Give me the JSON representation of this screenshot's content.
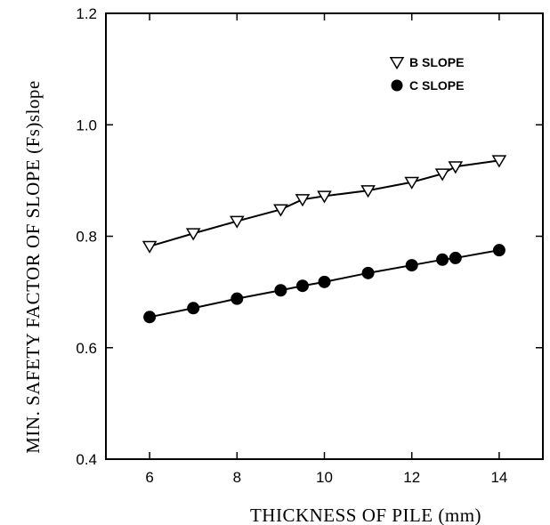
{
  "chart_data": {
    "type": "line",
    "xlabel": "THICKNESS OF PILE (mm)",
    "ylabel": "MIN. SAFETY FACTOR OF SLOPE (Fs)slope",
    "xlim": [
      5,
      15
    ],
    "ylim": [
      0.4,
      1.2
    ],
    "xticks": [
      6,
      8,
      10,
      12,
      14
    ],
    "yticks": [
      0.4,
      0.6,
      0.8,
      1.0,
      1.2
    ],
    "xtick_labels": [
      "6",
      "8",
      "10",
      "12",
      "14"
    ],
    "ytick_labels": [
      "0.4",
      "0.6",
      "0.8",
      "1.0",
      "1.2"
    ],
    "grid": false,
    "legend_position": "top-right",
    "series": [
      {
        "name": "B SLOPE",
        "marker": "open-triangle-down",
        "x": [
          6,
          7,
          8,
          9,
          9.5,
          10,
          11,
          12,
          12.7,
          13,
          14
        ],
        "y": [
          0.782,
          0.805,
          0.827,
          0.848,
          0.866,
          0.872,
          0.882,
          0.897,
          0.912,
          0.925,
          0.936
        ]
      },
      {
        "name": "C SLOPE",
        "marker": "filled-circle",
        "x": [
          6,
          7,
          8,
          9,
          9.5,
          10,
          11,
          12,
          12.7,
          13,
          14
        ],
        "y": [
          0.655,
          0.671,
          0.688,
          0.703,
          0.711,
          0.718,
          0.734,
          0.748,
          0.758,
          0.761,
          0.775
        ]
      }
    ]
  }
}
